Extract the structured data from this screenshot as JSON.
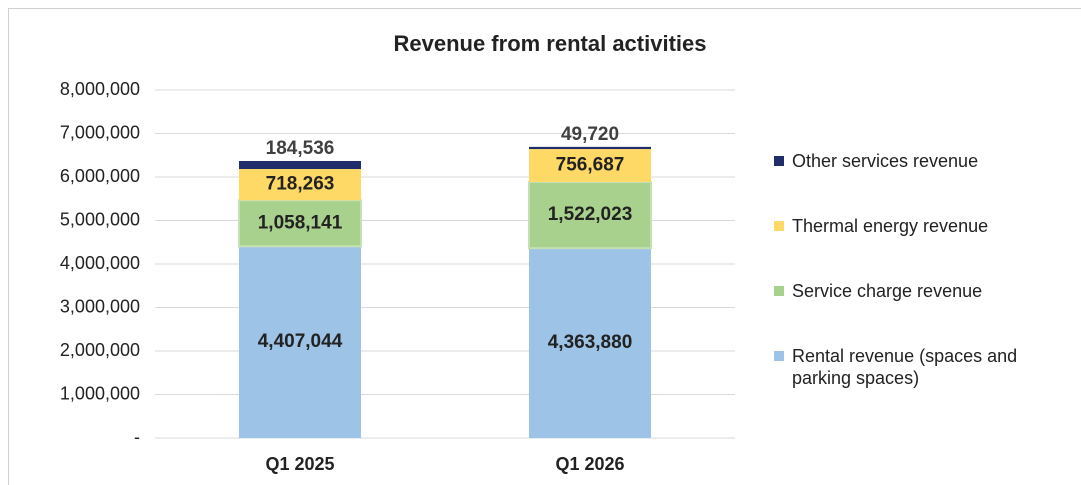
{
  "chart_data": {
    "type": "stacked_bar",
    "title": "Revenue from rental activities",
    "categories": [
      "Q1 2025",
      "Q1 2026"
    ],
    "series": [
      {
        "name": "Rental revenue (spaces and parking spaces)",
        "color": "#9dc3e6",
        "values": [
          4407044,
          4363880
        ],
        "value_labels": [
          "4,407,044",
          "4,363,880"
        ]
      },
      {
        "name": "Service charge revenue",
        "color": "#a9d18e",
        "values": [
          1058141,
          1522023
        ],
        "value_labels": [
          "1,058,141",
          "1,522,023"
        ]
      },
      {
        "name": "Thermal energy revenue",
        "color": "#ffd966",
        "values": [
          718263,
          756687
        ],
        "value_labels": [
          "718,263",
          "756,687"
        ]
      },
      {
        "name": "Other services revenue",
        "color": "#1f2d6b",
        "values": [
          184536,
          49720
        ],
        "value_labels": [
          "184,536",
          "49,720"
        ]
      }
    ],
    "ylim": [
      0,
      8000000
    ],
    "yticks": [
      {
        "value": 0,
        "label": "-"
      },
      {
        "value": 1000000,
        "label": "1,000,000"
      },
      {
        "value": 2000000,
        "label": "2,000,000"
      },
      {
        "value": 3000000,
        "label": "3,000,000"
      },
      {
        "value": 4000000,
        "label": "4,000,000"
      },
      {
        "value": 5000000,
        "label": "5,000,000"
      },
      {
        "value": 6000000,
        "label": "6,000,000"
      },
      {
        "value": 7000000,
        "label": "7,000,000"
      },
      {
        "value": 8000000,
        "label": "8,000,000"
      }
    ],
    "grid": true,
    "legend": "right"
  }
}
